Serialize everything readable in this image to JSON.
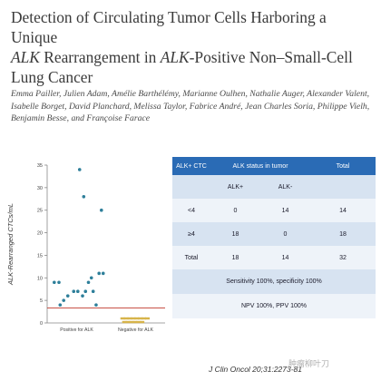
{
  "title": {
    "line1": "Detection of Circulating Tumor Cells Harboring a Unique",
    "line2_italic1": "ALK",
    "line2_mid": " Rearrangement in ",
    "line2_italic2": "ALK",
    "line2_end": "-Positive Non–Small-Cell",
    "line3": "Lung Cancer"
  },
  "authors": "Emma Pailler, Julien Adam, Amélie Barthélémy, Marianne Oulhen, Nathalie Auger, Alexander Valent, Isabelle Borget, David Planchard, Melissa Taylor, Fabrice André, Jean Charles Soria, Philippe Vielh, Benjamin Besse, and Françoise Farace",
  "chart_data": {
    "type": "scatter",
    "ylabel": "ALK-Rearranged CTCs/mL",
    "ylim": [
      0,
      35
    ],
    "yticks": [
      "0",
      "5",
      "10",
      "15",
      "20",
      "25",
      "30",
      "35"
    ],
    "categories": [
      "Positive for ALK",
      "Negative for ALK"
    ],
    "threshold": 3.3,
    "colors": {
      "positive": "#2e7f9a",
      "negative": "#d7b44a",
      "threshold": "#c0392b"
    },
    "series": [
      {
        "points": [
          {
            "x": 0.05,
            "y": 34
          },
          {
            "x": 0.12,
            "y": 28
          },
          {
            "x": 0.42,
            "y": 25
          },
          {
            "x": 0.38,
            "y": 11
          },
          {
            "x": 0.25,
            "y": 10
          },
          {
            "x": -0.38,
            "y": 9
          },
          {
            "x": -0.3,
            "y": 9
          },
          {
            "x": 0.2,
            "y": 9
          },
          {
            "x": -0.05,
            "y": 7
          },
          {
            "x": 0.02,
            "y": 7
          },
          {
            "x": 0.15,
            "y": 7
          },
          {
            "x": 0.28,
            "y": 7
          },
          {
            "x": 0.1,
            "y": 6
          },
          {
            "x": -0.15,
            "y": 6
          },
          {
            "x": -0.22,
            "y": 5
          },
          {
            "x": -0.28,
            "y": 4
          },
          {
            "x": 0.33,
            "y": 4
          },
          {
            "x": 0.45,
            "y": 11
          }
        ]
      },
      {
        "points": [
          {
            "x": 0.78,
            "y": 1
          },
          {
            "x": 0.84,
            "y": 1
          },
          {
            "x": 0.9,
            "y": 1
          },
          {
            "x": 0.96,
            "y": 1
          },
          {
            "x": 1.02,
            "y": 1
          },
          {
            "x": 1.08,
            "y": 1
          },
          {
            "x": 1.14,
            "y": 1
          },
          {
            "x": 1.2,
            "y": 1
          },
          {
            "x": 0.81,
            "y": 0.2
          },
          {
            "x": 0.87,
            "y": 0.2
          },
          {
            "x": 0.93,
            "y": 0.2
          },
          {
            "x": 0.99,
            "y": 0.2
          },
          {
            "x": 1.05,
            "y": 0.2
          },
          {
            "x": 1.11,
            "y": 0.2
          }
        ]
      }
    ]
  },
  "table": {
    "header": [
      "ALK+ CTC",
      "ALK status in tumor",
      "Total"
    ],
    "subheader": [
      "ALK+",
      "ALK-"
    ],
    "rows": [
      {
        "label": "<4",
        "a": "0",
        "b": "14",
        "total": "14"
      },
      {
        "label": "≥4",
        "a": "18",
        "b": "0",
        "total": "18"
      },
      {
        "label": "Total",
        "a": "18",
        "b": "14",
        "total": "32"
      }
    ],
    "note1": "Sensitivity 100%, specificity 100%",
    "note2": "NPV 100%, PPV 100%"
  },
  "citation": "J Clin Oncol 20",
  "citation_tail": ";31:2273-81",
  "watermark": "肿瘤柳叶刀"
}
